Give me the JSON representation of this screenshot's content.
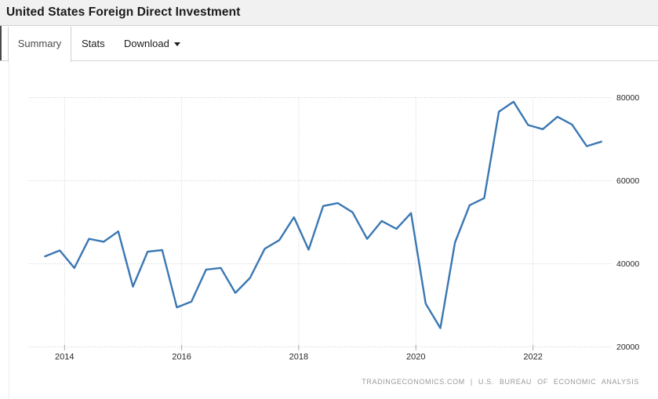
{
  "header": {
    "title": "United States Foreign Direct Investment"
  },
  "tabs": {
    "summary": "Summary",
    "stats": "Stats",
    "download": "Download"
  },
  "footer": {
    "attribution": "TRADINGECONOMICS.COM | U.S. BUREAU OF ECONOMIC ANALYSIS"
  },
  "colors": {
    "line": "#3a77b3",
    "grid": "#cccccc",
    "tick": "#aaaaaa",
    "header_bg": "#f1f1f1",
    "border": "#d5d5d5",
    "axis_text": "#262626",
    "attribution_text": "#9a9a9a"
  },
  "chart_data": {
    "type": "line",
    "title": "United States Foreign Direct Investment",
    "xlabel": "",
    "ylabel": "",
    "ylim": [
      20000,
      80000
    ],
    "grid": "dotted",
    "legend": "none",
    "x_axis_tick_labels": [
      "2014",
      "2016",
      "2018",
      "2020",
      "2022"
    ],
    "y_axis_tick_labels": [
      "20000",
      "40000",
      "60000",
      "80000"
    ],
    "x": [
      "2013-Q3",
      "2013-Q4",
      "2014-Q1",
      "2014-Q2",
      "2014-Q3",
      "2014-Q4",
      "2015-Q1",
      "2015-Q2",
      "2015-Q3",
      "2015-Q4",
      "2016-Q1",
      "2016-Q2",
      "2016-Q3",
      "2016-Q4",
      "2017-Q1",
      "2017-Q2",
      "2017-Q3",
      "2017-Q4",
      "2018-Q1",
      "2018-Q2",
      "2018-Q3",
      "2018-Q4",
      "2019-Q1",
      "2019-Q2",
      "2019-Q3",
      "2019-Q4",
      "2020-Q1",
      "2020-Q2",
      "2020-Q3",
      "2020-Q4",
      "2021-Q1",
      "2021-Q2",
      "2021-Q3",
      "2021-Q4",
      "2022-Q1",
      "2022-Q2",
      "2022-Q3",
      "2022-Q4",
      "2023-Q1"
    ],
    "values": [
      41800,
      43200,
      39000,
      46000,
      45300,
      47800,
      34500,
      42900,
      43300,
      29500,
      30900,
      38600,
      39000,
      33000,
      36600,
      43600,
      45700,
      51200,
      43400,
      53900,
      54600,
      52400,
      46000,
      50300,
      48400,
      52200,
      30400,
      24500,
      45100,
      54100,
      55800,
      76600,
      79000,
      73400,
      72400,
      75400,
      73500,
      68300,
      69400
    ]
  }
}
